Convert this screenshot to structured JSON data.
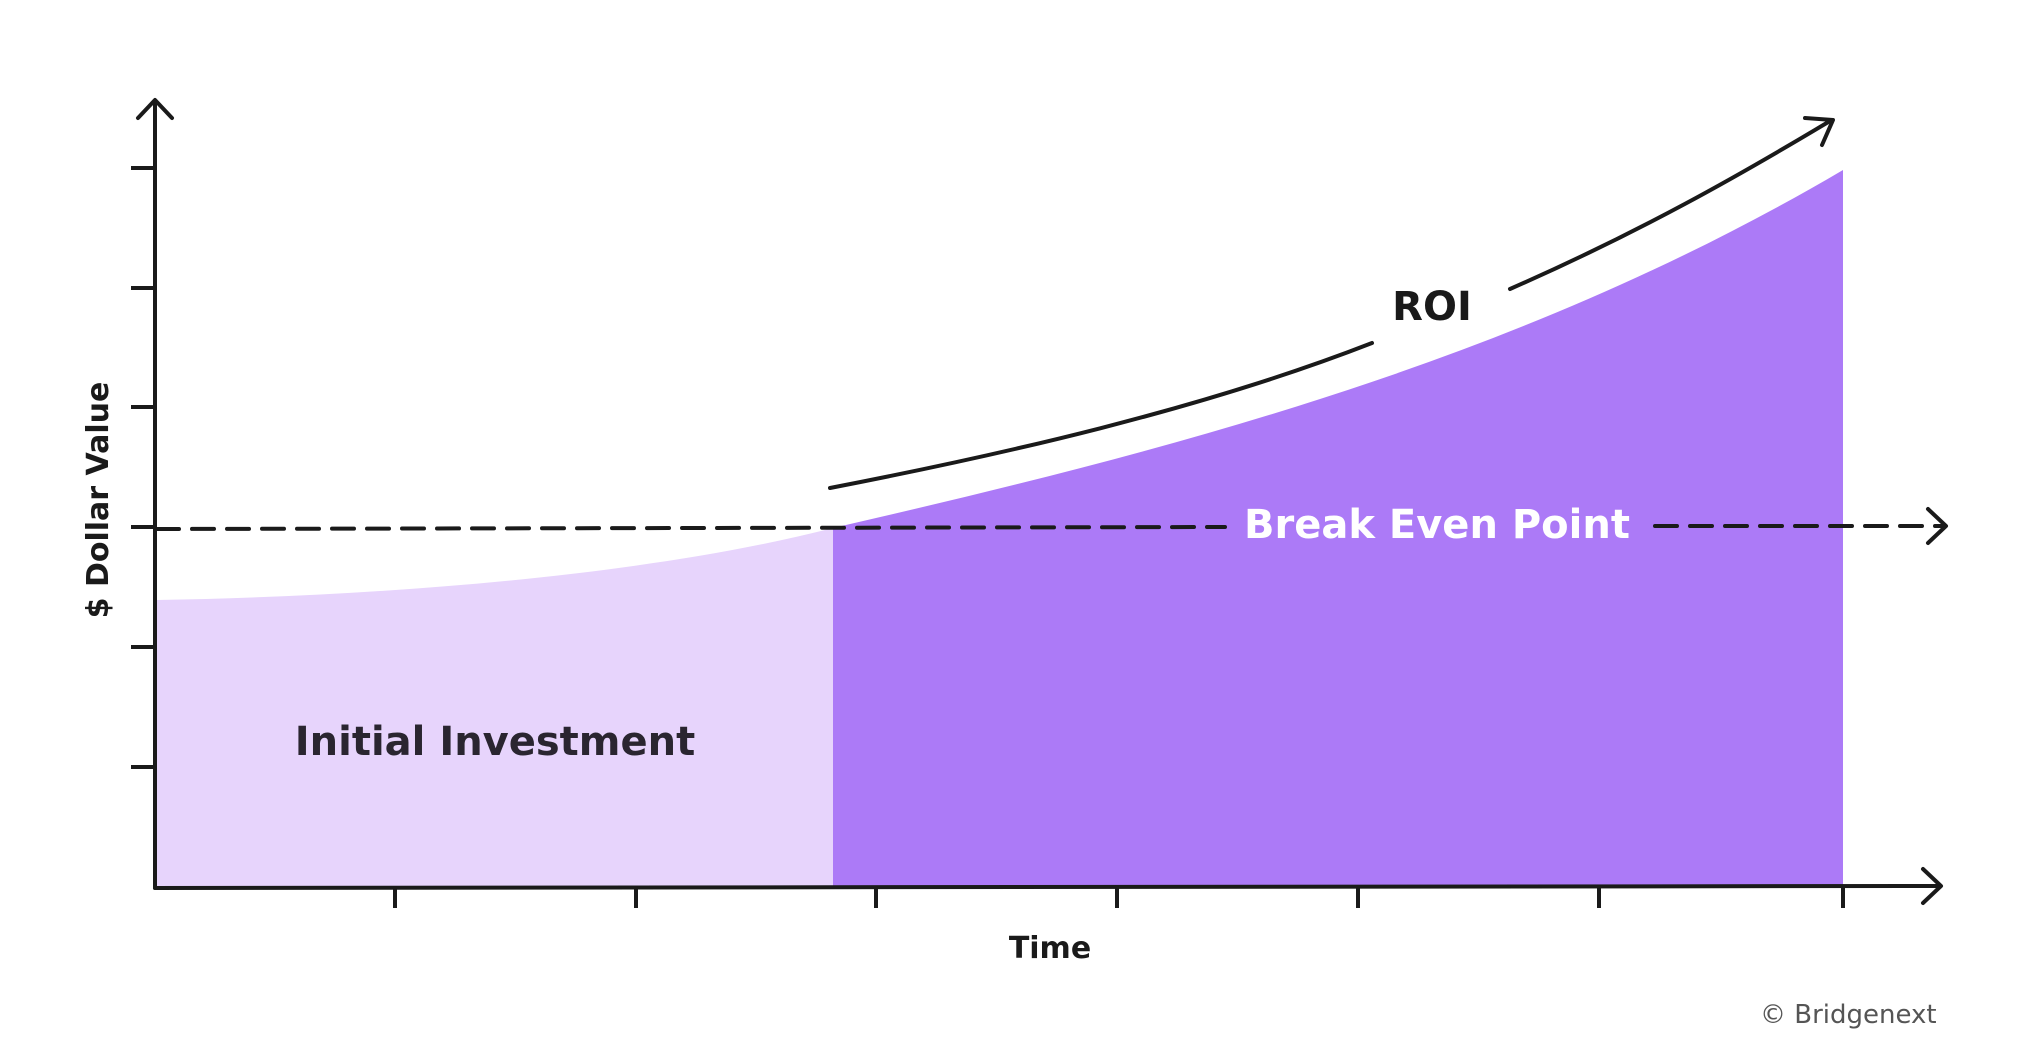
{
  "diagram": {
    "y_axis_label": "$ Dollar Value",
    "x_axis_label": "Time",
    "initial_investment_label": "Initial Investment",
    "break_even_label": "Break Even Point",
    "roi_label": "ROI"
  },
  "credit": "© Bridgenext",
  "colors": {
    "initial_investment_fill": "#E7D4FC",
    "roi_fill": "#AC7AF7",
    "axis": "#1a1a1a",
    "break_even_text": "#ffffff"
  }
}
